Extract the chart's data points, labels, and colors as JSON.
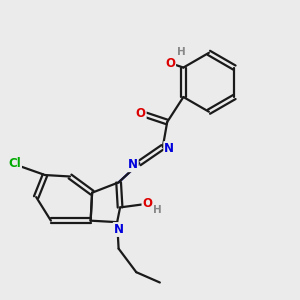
{
  "background_color": "#ebebeb",
  "bond_color": "#1a1a1a",
  "atom_colors": {
    "N": "#0000dd",
    "O": "#dd0000",
    "Cl": "#00aa00",
    "H_gray": "#888888",
    "C": "#1a1a1a"
  },
  "figsize": [
    3.0,
    3.0
  ],
  "dpi": 100,
  "lw": 1.6,
  "fs": 8.5,
  "fs_small": 7.5
}
